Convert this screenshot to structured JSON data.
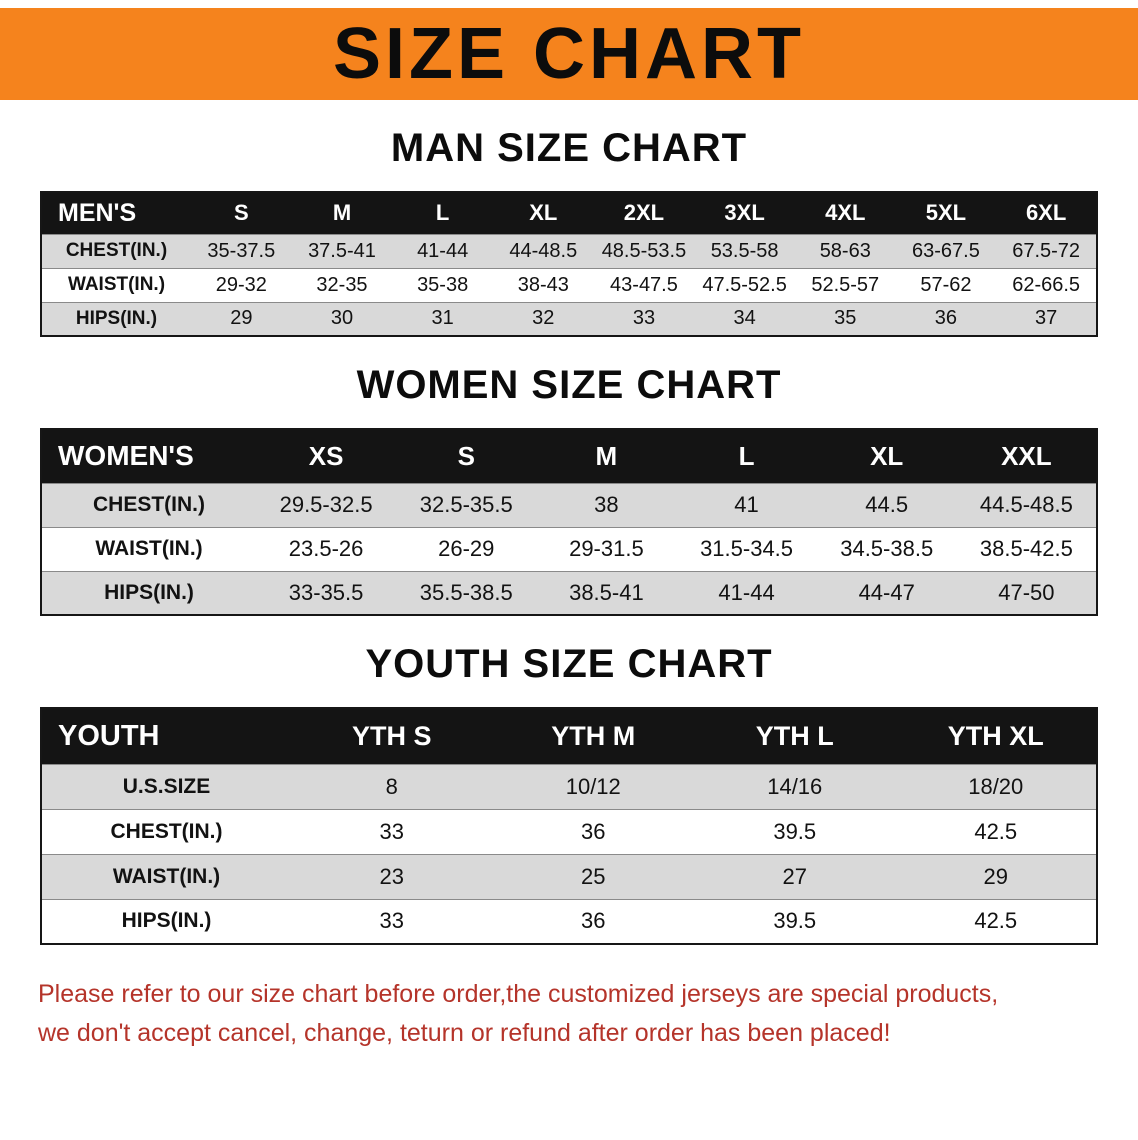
{
  "banner": {
    "title": "SIZE CHART"
  },
  "sections": [
    {
      "heading": "MAN SIZE CHART",
      "table": {
        "header": [
          "MEN'S",
          "S",
          "M",
          "L",
          "XL",
          "2XL",
          "3XL",
          "4XL",
          "5XL",
          "6XL"
        ],
        "rows": [
          [
            "CHEST(IN.)",
            "35-37.5",
            "37.5-41",
            "41-44",
            "44-48.5",
            "48.5-53.5",
            "53.5-58",
            "58-63",
            "63-67.5",
            "67.5-72"
          ],
          [
            "WAIST(IN.)",
            "29-32",
            "32-35",
            "35-38",
            "38-43",
            "43-47.5",
            "47.5-52.5",
            "52.5-57",
            "57-62",
            "62-66.5"
          ],
          [
            "HIPS(IN.)",
            "29",
            "30",
            "31",
            "32",
            "33",
            "34",
            "35",
            "36",
            "37"
          ]
        ]
      }
    },
    {
      "heading": "WOMEN SIZE CHART",
      "table": {
        "header": [
          "WOMEN'S",
          "XS",
          "S",
          "M",
          "L",
          "XL",
          "XXL"
        ],
        "rows": [
          [
            "CHEST(IN.)",
            "29.5-32.5",
            "32.5-35.5",
            "38",
            "41",
            "44.5",
            "44.5-48.5"
          ],
          [
            "WAIST(IN.)",
            "23.5-26",
            "26-29",
            "29-31.5",
            "31.5-34.5",
            "34.5-38.5",
            "38.5-42.5"
          ],
          [
            "HIPS(IN.)",
            "33-35.5",
            "35.5-38.5",
            "38.5-41",
            "41-44",
            "44-47",
            "47-50"
          ]
        ]
      }
    },
    {
      "heading": "YOUTH SIZE CHART",
      "table": {
        "header": [
          "YOUTH",
          "YTH S",
          "YTH M",
          "YTH L",
          "YTH XL"
        ],
        "rows": [
          [
            "U.S.SIZE",
            "8",
            "10/12",
            "14/16",
            "18/20"
          ],
          [
            "CHEST(IN.)",
            "33",
            "36",
            "39.5",
            "42.5"
          ],
          [
            "WAIST(IN.)",
            "23",
            "25",
            "27",
            "29"
          ],
          [
            "HIPS(IN.)",
            "33",
            "36",
            "39.5",
            "42.5"
          ]
        ]
      }
    }
  ],
  "footer": {
    "line1": "Please refer to our size chart before order,the customized jerseys are special products,",
    "line2": "we don't accept cancel, change, teturn or refund after order has been placed!"
  },
  "colors": {
    "banner_orange": "#f5831d",
    "table_header_black": "#141414",
    "row_gray": "#d9d9d9",
    "footer_red": "#b5342a"
  }
}
